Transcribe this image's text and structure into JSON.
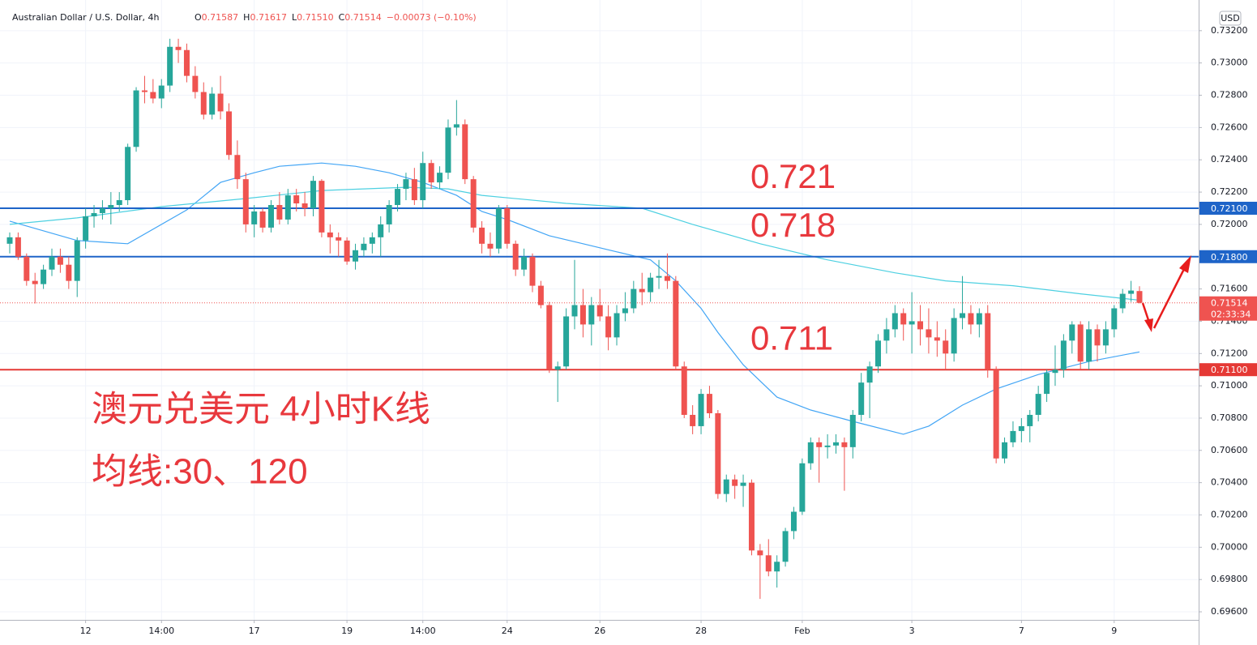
{
  "chart_data": {
    "type": "candlestick",
    "title": "Australian Dollar / U.S. Dollar, 4h",
    "ohlc_legend": [
      {
        "key": "O",
        "value": "0.71587"
      },
      {
        "key": "H",
        "value": "0.71617"
      },
      {
        "key": "L",
        "value": "0.71510"
      },
      {
        "key": "C",
        "value": "0.71514"
      }
    ],
    "change": "−0.00073 (−0.10%)",
    "currency": "USD",
    "up_color": "#26a69a",
    "down_color": "#ef5350",
    "grid": true,
    "categories": [
      null,
      null,
      null,
      null,
      null,
      null,
      null,
      null,
      null,
      "12",
      null,
      null,
      null,
      null,
      null,
      null,
      null,
      null,
      "14:00",
      null,
      null,
      null,
      null,
      null,
      null,
      null,
      null,
      null,
      null,
      "17",
      null,
      null,
      null,
      null,
      null,
      null,
      null,
      null,
      null,
      null,
      "19",
      null,
      null,
      null,
      null,
      null,
      null,
      null,
      null,
      "14:00",
      null,
      null,
      null,
      null,
      null,
      null,
      null,
      null,
      null,
      "24",
      null,
      null,
      null,
      null,
      null,
      null,
      null,
      null,
      null,
      null,
      "26",
      null,
      null,
      null,
      null,
      null,
      null,
      null,
      null,
      null,
      null,
      null,
      "28",
      null,
      null,
      null,
      null,
      null,
      null,
      null,
      null,
      null,
      null,
      null,
      "Feb",
      null,
      null,
      null,
      null,
      null,
      null,
      null,
      null,
      null,
      null,
      null,
      null,
      "3",
      null,
      null,
      null,
      null,
      null,
      null,
      null,
      null,
      null,
      null,
      null,
      null,
      "7",
      null,
      null,
      null,
      null,
      null,
      null,
      null,
      null,
      null,
      null,
      "9",
      null,
      null,
      null
    ],
    "candles": [
      [
        0.7188,
        0.7195,
        0.7182,
        0.7192
      ],
      [
        0.7192,
        0.7195,
        0.7178,
        0.718
      ],
      [
        0.718,
        0.7182,
        0.7162,
        0.7165
      ],
      [
        0.7165,
        0.717,
        0.7151,
        0.7163
      ],
      [
        0.7163,
        0.7175,
        0.716,
        0.7172
      ],
      [
        0.7172,
        0.7185,
        0.7168,
        0.718
      ],
      [
        0.718,
        0.7185,
        0.717,
        0.7175
      ],
      [
        0.7175,
        0.718,
        0.716,
        0.7165
      ],
      [
        0.7165,
        0.7192,
        0.7155,
        0.719
      ],
      [
        0.719,
        0.721,
        0.7185,
        0.7205
      ],
      [
        0.7205,
        0.7212,
        0.7198,
        0.7207
      ],
      [
        0.7207,
        0.7215,
        0.7203,
        0.721
      ],
      [
        0.721,
        0.722,
        0.72,
        0.7212
      ],
      [
        0.7212,
        0.722,
        0.7208,
        0.7215
      ],
      [
        0.7215,
        0.725,
        0.7212,
        0.7248
      ],
      [
        0.7248,
        0.7285,
        0.7245,
        0.7283
      ],
      [
        0.7283,
        0.7292,
        0.7275,
        0.7282
      ],
      [
        0.7282,
        0.729,
        0.7275,
        0.7278
      ],
      [
        0.7278,
        0.729,
        0.7272,
        0.7286
      ],
      [
        0.7286,
        0.7315,
        0.7282,
        0.731
      ],
      [
        0.731,
        0.7315,
        0.73,
        0.7308
      ],
      [
        0.7308,
        0.7312,
        0.7288,
        0.7292
      ],
      [
        0.7292,
        0.7298,
        0.7278,
        0.7282
      ],
      [
        0.7282,
        0.7288,
        0.7265,
        0.7268
      ],
      [
        0.7268,
        0.7285,
        0.7265,
        0.7281
      ],
      [
        0.7281,
        0.7292,
        0.7265,
        0.727
      ],
      [
        0.727,
        0.7275,
        0.724,
        0.7243
      ],
      [
        0.7243,
        0.7252,
        0.7222,
        0.7228
      ],
      [
        0.7228,
        0.7232,
        0.7195,
        0.72
      ],
      [
        0.72,
        0.7212,
        0.7192,
        0.7208
      ],
      [
        0.7208,
        0.721,
        0.7195,
        0.7198
      ],
      [
        0.7198,
        0.7215,
        0.7195,
        0.7212
      ],
      [
        0.7212,
        0.722,
        0.72,
        0.7203
      ],
      [
        0.7203,
        0.7222,
        0.72,
        0.7218
      ],
      [
        0.7218,
        0.7222,
        0.7208,
        0.7213
      ],
      [
        0.7213,
        0.722,
        0.7205,
        0.721
      ],
      [
        0.721,
        0.723,
        0.7205,
        0.7227
      ],
      [
        0.7227,
        0.7228,
        0.7192,
        0.7195
      ],
      [
        0.7195,
        0.72,
        0.7182,
        0.7192
      ],
      [
        0.7192,
        0.7195,
        0.718,
        0.719
      ],
      [
        0.719,
        0.7192,
        0.7175,
        0.7177
      ],
      [
        0.7177,
        0.7188,
        0.7172,
        0.7184
      ],
      [
        0.7184,
        0.7192,
        0.718,
        0.7188
      ],
      [
        0.7188,
        0.7195,
        0.7182,
        0.7192
      ],
      [
        0.7192,
        0.7205,
        0.718,
        0.72
      ],
      [
        0.72,
        0.7215,
        0.7195,
        0.7212
      ],
      [
        0.7212,
        0.7225,
        0.7208,
        0.7222
      ],
      [
        0.7222,
        0.7232,
        0.7215,
        0.7228
      ],
      [
        0.7228,
        0.7235,
        0.7212,
        0.7215
      ],
      [
        0.7215,
        0.7245,
        0.721,
        0.7238
      ],
      [
        0.7238,
        0.724,
        0.7222,
        0.7226
      ],
      [
        0.7226,
        0.7236,
        0.7222,
        0.7232
      ],
      [
        0.7232,
        0.7265,
        0.7228,
        0.726
      ],
      [
        0.726,
        0.7277,
        0.7255,
        0.7262
      ],
      [
        0.7262,
        0.7265,
        0.7225,
        0.7228
      ],
      [
        0.7228,
        0.723,
        0.7195,
        0.7198
      ],
      [
        0.7198,
        0.7202,
        0.7182,
        0.7188
      ],
      [
        0.7188,
        0.7195,
        0.718,
        0.7185
      ],
      [
        0.7185,
        0.7212,
        0.7182,
        0.721
      ],
      [
        0.721,
        0.7212,
        0.7185,
        0.7188
      ],
      [
        0.7188,
        0.719,
        0.7168,
        0.7172
      ],
      [
        0.7172,
        0.7185,
        0.7168,
        0.718
      ],
      [
        0.718,
        0.7182,
        0.7158,
        0.7162
      ],
      [
        0.7162,
        0.7165,
        0.7148,
        0.715
      ],
      [
        0.715,
        0.7152,
        0.7108,
        0.711
      ],
      [
        0.711,
        0.7115,
        0.709,
        0.7112
      ],
      [
        0.7112,
        0.7148,
        0.711,
        0.7143
      ],
      [
        0.7143,
        0.7178,
        0.7135,
        0.715
      ],
      [
        0.715,
        0.716,
        0.713,
        0.7138
      ],
      [
        0.7138,
        0.7155,
        0.7125,
        0.715
      ],
      [
        0.715,
        0.716,
        0.714,
        0.7143
      ],
      [
        0.7143,
        0.715,
        0.7122,
        0.713
      ],
      [
        0.713,
        0.715,
        0.7125,
        0.7145
      ],
      [
        0.7145,
        0.7158,
        0.714,
        0.7148
      ],
      [
        0.7148,
        0.7165,
        0.7145,
        0.716
      ],
      [
        0.716,
        0.717,
        0.715,
        0.7158
      ],
      [
        0.7158,
        0.717,
        0.7152,
        0.7167
      ],
      [
        0.7167,
        0.7178,
        0.716,
        0.7168
      ],
      [
        0.7168,
        0.7182,
        0.716,
        0.7165
      ],
      [
        0.7165,
        0.7168,
        0.711,
        0.7112
      ],
      [
        0.7112,
        0.7115,
        0.708,
        0.7082
      ],
      [
        0.7082,
        0.7088,
        0.707,
        0.7075
      ],
      [
        0.7075,
        0.7098,
        0.707,
        0.7095
      ],
      [
        0.7095,
        0.71,
        0.708,
        0.7083
      ],
      [
        0.7083,
        0.7085,
        0.703,
        0.7033
      ],
      [
        0.7033,
        0.7045,
        0.7028,
        0.7042
      ],
      [
        0.7042,
        0.7045,
        0.703,
        0.7038
      ],
      [
        0.7038,
        0.7045,
        0.7025,
        0.704
      ],
      [
        0.704,
        0.7042,
        0.6995,
        0.6998
      ],
      [
        0.6998,
        0.7002,
        0.6968,
        0.6995
      ],
      [
        0.6995,
        0.7005,
        0.6982,
        0.6985
      ],
      [
        0.6985,
        0.6995,
        0.6975,
        0.6991
      ],
      [
        0.6991,
        0.7012,
        0.6988,
        0.701
      ],
      [
        0.701,
        0.7025,
        0.7005,
        0.7022
      ],
      [
        0.7022,
        0.7055,
        0.702,
        0.7052
      ],
      [
        0.7052,
        0.7068,
        0.7048,
        0.7065
      ],
      [
        0.7065,
        0.7068,
        0.704,
        0.7062
      ],
      [
        0.7062,
        0.707,
        0.7055,
        0.7063
      ],
      [
        0.7063,
        0.707,
        0.7058,
        0.7065
      ],
      [
        0.7065,
        0.7068,
        0.7035,
        0.7062
      ],
      [
        0.7062,
        0.7085,
        0.7055,
        0.7082
      ],
      [
        0.7082,
        0.7108,
        0.7078,
        0.7102
      ],
      [
        0.7102,
        0.7115,
        0.708,
        0.7112
      ],
      [
        0.7112,
        0.7132,
        0.7108,
        0.7128
      ],
      [
        0.7128,
        0.7142,
        0.712,
        0.7135
      ],
      [
        0.7135,
        0.715,
        0.713,
        0.7145
      ],
      [
        0.7145,
        0.7148,
        0.7128,
        0.7138
      ],
      [
        0.7138,
        0.7158,
        0.712,
        0.714
      ],
      [
        0.714,
        0.715,
        0.7125,
        0.7135
      ],
      [
        0.7135,
        0.7148,
        0.712,
        0.713
      ],
      [
        0.713,
        0.714,
        0.7118,
        0.7128
      ],
      [
        0.7128,
        0.7135,
        0.711,
        0.712
      ],
      [
        0.712,
        0.7148,
        0.7115,
        0.7142
      ],
      [
        0.7142,
        0.7168,
        0.7135,
        0.7145
      ],
      [
        0.7145,
        0.715,
        0.7132,
        0.7138
      ],
      [
        0.7138,
        0.7148,
        0.713,
        0.7145
      ],
      [
        0.7145,
        0.715,
        0.7105,
        0.711
      ],
      [
        0.711,
        0.7112,
        0.7052,
        0.7055
      ],
      [
        0.7055,
        0.7068,
        0.7052,
        0.7065
      ],
      [
        0.7065,
        0.7078,
        0.7062,
        0.7072
      ],
      [
        0.7072,
        0.708,
        0.7065,
        0.7075
      ],
      [
        0.7075,
        0.7085,
        0.7065,
        0.7082
      ],
      [
        0.7082,
        0.71,
        0.7078,
        0.7095
      ],
      [
        0.7095,
        0.711,
        0.709,
        0.7108
      ],
      [
        0.7108,
        0.7125,
        0.71,
        0.711
      ],
      [
        0.711,
        0.7132,
        0.7105,
        0.7128
      ],
      [
        0.7128,
        0.714,
        0.712,
        0.7138
      ],
      [
        0.7138,
        0.714,
        0.711,
        0.7115
      ],
      [
        0.7115,
        0.714,
        0.711,
        0.7135
      ],
      [
        0.7135,
        0.7138,
        0.7115,
        0.7125
      ],
      [
        0.7125,
        0.714,
        0.712,
        0.7135
      ],
      [
        0.7135,
        0.715,
        0.713,
        0.7148
      ],
      [
        0.7148,
        0.716,
        0.7145,
        0.7157
      ],
      [
        0.7157,
        0.7165,
        0.7152,
        0.7159
      ],
      [
        0.71587,
        0.71617,
        0.7151,
        0.71514
      ]
    ],
    "series": [
      {
        "color": "#42a5f5",
        "x": [
          0,
          8,
          14,
          21,
          25,
          29,
          32,
          37,
          41,
          45,
          49,
          53,
          56,
          59,
          64,
          68,
          72,
          76,
          79,
          82,
          84,
          87,
          91,
          95,
          100,
          106,
          109,
          113,
          117,
          122,
          128,
          134
        ],
        "values": [
          0.7202,
          0.719,
          0.7188,
          0.7209,
          0.7226,
          0.7232,
          0.7236,
          0.7238,
          0.7236,
          0.7232,
          0.7226,
          0.7218,
          0.7208,
          0.7203,
          0.7193,
          0.7188,
          0.7183,
          0.7178,
          0.7165,
          0.7148,
          0.7133,
          0.7113,
          0.7093,
          0.7085,
          0.7078,
          0.707,
          0.7075,
          0.7088,
          0.7098,
          0.7107,
          0.7115,
          0.7121
        ]
      },
      {
        "color": "#4dd0e1",
        "x": [
          0,
          8,
          18,
          28,
          37,
          47,
          52,
          56,
          66,
          75,
          81,
          89,
          97,
          105,
          111,
          119,
          127,
          134
        ],
        "values": [
          0.72,
          0.7204,
          0.7211,
          0.7216,
          0.7221,
          0.7223,
          0.7222,
          0.7218,
          0.7213,
          0.721,
          0.72,
          0.7188,
          0.7178,
          0.717,
          0.7165,
          0.7162,
          0.7157,
          0.7153
        ]
      }
    ],
    "levels": [
      {
        "value": 0.721,
        "label": "0.72100",
        "annotation": "0.721",
        "color": "#1e64c8"
      },
      {
        "value": 0.718,
        "label": "0.71800",
        "annotation": "0.718",
        "color": "#1e64c8"
      },
      {
        "value": 0.711,
        "label": "0.71100",
        "annotation": "0.711",
        "color": "#e53935"
      }
    ],
    "last_price": 0.71514,
    "countdown": "02:33:34",
    "notes": [
      "澳元兑美元 4小时K线",
      "均线:30、120"
    ],
    "ylim": [
      0.6955,
      0.7339
    ],
    "yticks": [
      {
        "value": 0.696,
        "label": "0.69600"
      },
      {
        "value": 0.698,
        "label": "0.69800"
      },
      {
        "value": 0.7,
        "label": "0.70000"
      },
      {
        "value": 0.702,
        "label": "0.70200"
      },
      {
        "value": 0.704,
        "label": "0.70400"
      },
      {
        "value": 0.706,
        "label": "0.70600"
      },
      {
        "value": 0.708,
        "label": "0.70800"
      },
      {
        "value": 0.71,
        "label": "0.71000"
      },
      {
        "value": 0.712,
        "label": "0.71200"
      },
      {
        "value": 0.714,
        "label": "0.71400"
      },
      {
        "value": 0.716,
        "label": "0.71600"
      },
      {
        "value": 0.718,
        "label": "0.71800"
      },
      {
        "value": 0.72,
        "label": "0.72000"
      },
      {
        "value": 0.722,
        "label": "0.72200"
      },
      {
        "value": 0.724,
        "label": "0.72400"
      },
      {
        "value": 0.726,
        "label": "0.72600"
      },
      {
        "value": 0.728,
        "label": "0.72800"
      },
      {
        "value": 0.73,
        "label": "0.73000"
      },
      {
        "value": 0.732,
        "label": "0.73200"
      }
    ]
  }
}
